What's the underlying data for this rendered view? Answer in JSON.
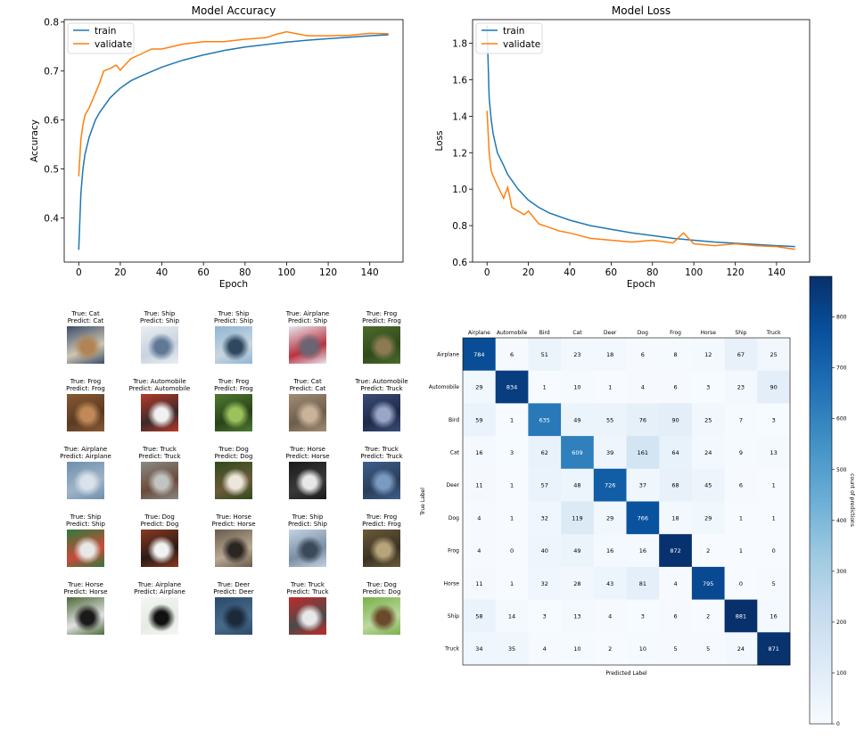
{
  "chart_data": [
    {
      "type": "line",
      "title": "Model Accuracy",
      "xlabel": "Epoch",
      "ylabel": "Accuracy",
      "xlim": [
        -7,
        156
      ],
      "ylim": [
        0.31,
        0.805
      ],
      "xticks": [
        0,
        20,
        40,
        60,
        80,
        100,
        120,
        140
      ],
      "yticks": [
        0.4,
        0.5,
        0.6,
        0.7,
        0.8
      ],
      "legend": "top-left",
      "series": [
        {
          "name": "train",
          "color": "#1f77b4",
          "x": [
            0,
            1,
            2,
            3,
            5,
            8,
            10,
            15,
            20,
            25,
            30,
            40,
            50,
            60,
            70,
            80,
            90,
            100,
            110,
            120,
            130,
            140,
            149
          ],
          "y": [
            0.335,
            0.45,
            0.5,
            0.53,
            0.565,
            0.6,
            0.615,
            0.645,
            0.665,
            0.68,
            0.69,
            0.708,
            0.722,
            0.733,
            0.742,
            0.749,
            0.754,
            0.759,
            0.763,
            0.766,
            0.769,
            0.772,
            0.774
          ]
        },
        {
          "name": "validate",
          "color": "#ff7f0e",
          "x": [
            0,
            1,
            2,
            3,
            5,
            8,
            10,
            12,
            15,
            18,
            20,
            25,
            30,
            35,
            40,
            50,
            60,
            70,
            80,
            90,
            95,
            100,
            110,
            120,
            130,
            140,
            149
          ],
          "y": [
            0.485,
            0.56,
            0.59,
            0.61,
            0.625,
            0.655,
            0.675,
            0.7,
            0.705,
            0.712,
            0.702,
            0.725,
            0.735,
            0.745,
            0.745,
            0.755,
            0.76,
            0.76,
            0.765,
            0.768,
            0.775,
            0.78,
            0.772,
            0.772,
            0.773,
            0.777,
            0.776
          ]
        }
      ]
    },
    {
      "type": "line",
      "title": "Model Loss",
      "xlabel": "Epoch",
      "ylabel": "Loss",
      "xlim": [
        -7,
        156
      ],
      "ylim": [
        0.6,
        1.93
      ],
      "xticks": [
        0,
        20,
        40,
        60,
        80,
        100,
        120,
        140
      ],
      "yticks": [
        0.6,
        0.8,
        1.0,
        1.2,
        1.4,
        1.6,
        1.8
      ],
      "legend": "top-left",
      "series": [
        {
          "name": "train",
          "color": "#1f77b4",
          "x": [
            0,
            1,
            2,
            3,
            5,
            8,
            10,
            15,
            20,
            25,
            30,
            40,
            50,
            60,
            70,
            80,
            90,
            100,
            110,
            120,
            130,
            140,
            149
          ],
          "y": [
            1.9,
            1.5,
            1.38,
            1.3,
            1.2,
            1.13,
            1.08,
            1.0,
            0.94,
            0.9,
            0.87,
            0.83,
            0.8,
            0.78,
            0.76,
            0.745,
            0.73,
            0.72,
            0.71,
            0.703,
            0.697,
            0.69,
            0.685
          ]
        },
        {
          "name": "validate",
          "color": "#ff7f0e",
          "x": [
            0,
            1,
            2,
            3,
            5,
            8,
            10,
            12,
            15,
            18,
            20,
            25,
            30,
            35,
            40,
            50,
            60,
            70,
            80,
            90,
            95,
            100,
            110,
            120,
            130,
            140,
            149
          ],
          "y": [
            1.43,
            1.2,
            1.1,
            1.07,
            1.02,
            0.95,
            1.01,
            0.9,
            0.88,
            0.86,
            0.88,
            0.81,
            0.79,
            0.77,
            0.76,
            0.73,
            0.72,
            0.71,
            0.72,
            0.705,
            0.76,
            0.7,
            0.69,
            0.7,
            0.69,
            0.685,
            0.67
          ]
        }
      ]
    },
    {
      "type": "heatmap",
      "xlabel": "Predicted Label",
      "ylabel": "True Label",
      "colorbar_label": "count of predictions",
      "colorbar_ticks": [
        0,
        100,
        200,
        300,
        400,
        500,
        600,
        700,
        800
      ],
      "vmax": 880,
      "colormap": [
        "#f7fbff",
        "#deebf7",
        "#c6dbef",
        "#9ecae1",
        "#6baed6",
        "#4292c6",
        "#2171b5",
        "#08519c",
        "#08306b"
      ],
      "x_labels": [
        "Airplane",
        "Automobile",
        "Bird",
        "Cat",
        "Deer",
        "Dog",
        "Frog",
        "Horse",
        "Ship",
        "Truck"
      ],
      "y_labels": [
        "Airplane",
        "Automobile",
        "Bird",
        "Cat",
        "Deer",
        "Dog",
        "Frog",
        "Horse",
        "Ship",
        "Truck"
      ],
      "values": [
        [
          784,
          6,
          51,
          23,
          18,
          6,
          8,
          12,
          67,
          25
        ],
        [
          29,
          834,
          1,
          10,
          1,
          4,
          6,
          3,
          23,
          90
        ],
        [
          59,
          1,
          635,
          49,
          55,
          76,
          90,
          25,
          7,
          3
        ],
        [
          16,
          3,
          62,
          609,
          39,
          161,
          64,
          24,
          9,
          13
        ],
        [
          11,
          1,
          57,
          48,
          726,
          37,
          68,
          45,
          6,
          1
        ],
        [
          4,
          1,
          32,
          119,
          29,
          766,
          18,
          29,
          1,
          1
        ],
        [
          4,
          0,
          40,
          49,
          16,
          16,
          872,
          2,
          1,
          0
        ],
        [
          11,
          1,
          32,
          28,
          43,
          81,
          4,
          795,
          0,
          5
        ],
        [
          58,
          14,
          3,
          13,
          4,
          3,
          6,
          2,
          881,
          16
        ],
        [
          34,
          35,
          4,
          10,
          2,
          10,
          5,
          5,
          24,
          871
        ]
      ]
    }
  ],
  "gallery": {
    "rows": [
      [
        {
          "true": "True: Cat",
          "pred": "Predict: Cat",
          "colors": [
            "#3c4d6a",
            "#b08454",
            "#cfc6b2"
          ]
        },
        {
          "true": "True: Ship",
          "pred": "Predict: Ship",
          "colors": [
            "#e9eef2",
            "#5f7896",
            "#c8d3de"
          ]
        },
        {
          "true": "True: Ship",
          "pred": "Predict: Ship",
          "colors": [
            "#8fb5d4",
            "#2f4860",
            "#c9d6e0"
          ]
        },
        {
          "true": "True: Airplane",
          "pred": "Predict: Ship",
          "colors": [
            "#e8e6ef",
            "#6a6474",
            "#b7333f"
          ]
        },
        {
          "true": "True: Frog",
          "pred": "Predict: Frog",
          "colors": [
            "#4c6b2c",
            "#8d7a52",
            "#2f4a1c"
          ]
        }
      ],
      [
        {
          "true": "True: Frog",
          "pred": "Predict: Frog",
          "colors": [
            "#8a5a33",
            "#c08a58",
            "#5a3a22"
          ]
        },
        {
          "true": "True: Automobile",
          "pred": "Predict: Automobile",
          "colors": [
            "#b63a2a",
            "#f1f1f1",
            "#3a2a2a"
          ]
        },
        {
          "true": "True: Frog",
          "pred": "Predict: Frog",
          "colors": [
            "#4d7a33",
            "#9cc25c",
            "#2a4219"
          ]
        },
        {
          "true": "True: Cat",
          "pred": "Predict: Cat",
          "colors": [
            "#a38d74",
            "#c9b49a",
            "#6d5d4c"
          ]
        },
        {
          "true": "True: Automobile",
          "pred": "Predict: Truck",
          "colors": [
            "#3a4d78",
            "#9aa6c8",
            "#1e2a48"
          ]
        }
      ],
      [
        {
          "true": "True: Airplane",
          "pred": "Predict: Airplane",
          "colors": [
            "#6f8fab",
            "#d9e1ea",
            "#9fb4c8"
          ]
        },
        {
          "true": "True: Truck",
          "pred": "Predict: Truck",
          "colors": [
            "#8a8a86",
            "#c2c4c0",
            "#6a4a3a"
          ]
        },
        {
          "true": "True: Dog",
          "pred": "Predict: Dog",
          "colors": [
            "#2f4a1a",
            "#ede6da",
            "#6a5a3a"
          ]
        },
        {
          "true": "True: Horse",
          "pred": "Predict: Horse",
          "colors": [
            "#1a1a1a",
            "#e8e8e8",
            "#3a3a3a"
          ]
        },
        {
          "true": "True: Truck",
          "pred": "Predict: Truck",
          "colors": [
            "#3d5e8c",
            "#7b9ac2",
            "#2a3e5a"
          ]
        }
      ],
      [
        {
          "true": "True: Ship",
          "pred": "Predict: Ship",
          "colors": [
            "#2f7a3c",
            "#e8e8e8",
            "#c84a3a"
          ]
        },
        {
          "true": "True: Dog",
          "pred": "Predict: Dog",
          "colors": [
            "#8a3a22",
            "#f2f2f2",
            "#2a1a14"
          ]
        },
        {
          "true": "True: Horse",
          "pred": "Predict: Horse",
          "colors": [
            "#6a5a4a",
            "#2a2622",
            "#b8a894"
          ]
        },
        {
          "true": "True: Ship",
          "pred": "Predict: Ship",
          "colors": [
            "#c3d3e3",
            "#3a4a5a",
            "#7a8ea2"
          ]
        },
        {
          "true": "True: Frog",
          "pred": "Predict: Frog",
          "colors": [
            "#6a5a3a",
            "#b8a47a",
            "#3a3222"
          ]
        }
      ],
      [
        {
          "true": "True: Horse",
          "pred": "Predict: Horse",
          "colors": [
            "#4d6a3a",
            "#1a1a1a",
            "#e2e2e2"
          ]
        },
        {
          "true": "True: Airplane",
          "pred": "Predict: Airplane",
          "colors": [
            "#f3f6f2",
            "#111111",
            "#e6ece4"
          ]
        },
        {
          "true": "True: Deer",
          "pred": "Predict: Deer",
          "colors": [
            "#2a4a6a",
            "#1a2a3a",
            "#4a6a8a"
          ]
        },
        {
          "true": "True: Truck",
          "pred": "Predict: Truck",
          "colors": [
            "#c22a2a",
            "#e8e8e8",
            "#4a4a4a"
          ]
        },
        {
          "true": "True: Dog",
          "pred": "Predict: Dog",
          "colors": [
            "#7ab04a",
            "#6a4a2a",
            "#bcd8a0"
          ]
        }
      ]
    ]
  }
}
